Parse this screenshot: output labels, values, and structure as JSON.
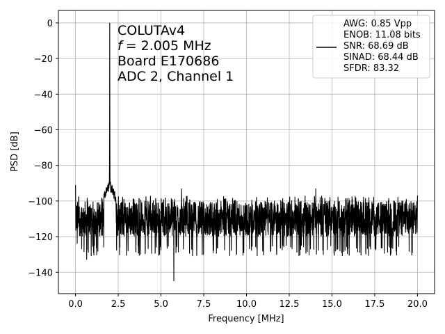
{
  "chart_data": {
    "type": "line",
    "xlabel": "Frequency [MHz]",
    "ylabel": "PSD [dB]",
    "xlim": [
      -1.0,
      21.0
    ],
    "ylim": [
      -152,
      7
    ],
    "x_ticks": [
      0.0,
      2.5,
      5.0,
      7.5,
      10.0,
      12.5,
      15.0,
      17.5,
      20.0
    ],
    "x_tick_labels": [
      "0.0",
      "2.5",
      "5.0",
      "7.5",
      "10.0",
      "12.5",
      "15.0",
      "17.5",
      "20.0"
    ],
    "y_ticks": [
      0,
      -20,
      -40,
      -60,
      -80,
      -100,
      -120,
      -140
    ],
    "y_tick_labels": [
      "0",
      "−20",
      "−40",
      "−60",
      "−80",
      "−100",
      "−120",
      "−140"
    ],
    "grid": true,
    "annotation": {
      "lines": [
        "COLUTAv4",
        "= 2.005 MHz",
        "Board E170686",
        "ADC 2, Channel 1"
      ],
      "f_symbol": "f"
    },
    "legend": {
      "placement": "top-right",
      "lines": [
        "AWG: 0.85 Vpp",
        "ENOB: 11.08 bits",
        "SNR: 68.69 dB",
        "SINAD: 68.44 dB",
        "SFDR: 83.32"
      ]
    },
    "series": [
      {
        "color": "#000000",
        "noise_floor_db": -110,
        "noise_range_db": [
          -125,
          -97
        ],
        "fundamental": {
          "x": 2.005,
          "y": 0
        },
        "features": [
          {
            "x": 0.0,
            "y": -91
          },
          {
            "x": 0.1,
            "y": -124
          },
          {
            "x": 0.65,
            "y": -133
          },
          {
            "x": 1.65,
            "y": -126
          },
          {
            "x": 2.0,
            "y": -86
          },
          {
            "x": 2.6,
            "y": -126
          },
          {
            "x": 5.75,
            "y": -145
          },
          {
            "x": 6.2,
            "y": -93
          },
          {
            "x": 14.05,
            "y": -93
          },
          {
            "x": 20.0,
            "y": -97
          }
        ],
        "x_range": [
          0.0,
          20.0
        ]
      }
    ]
  }
}
